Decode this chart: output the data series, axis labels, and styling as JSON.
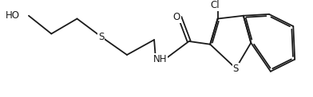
{
  "background_color": "#ffffff",
  "line_color": "#1a1a1a",
  "line_width": 1.3,
  "font_size": 8.5,
  "figsize": [
    3.92,
    1.22
  ],
  "dpi": 100,
  "xlim": [
    0.0,
    3.92
  ],
  "ylim": [
    0.0,
    1.22
  ]
}
